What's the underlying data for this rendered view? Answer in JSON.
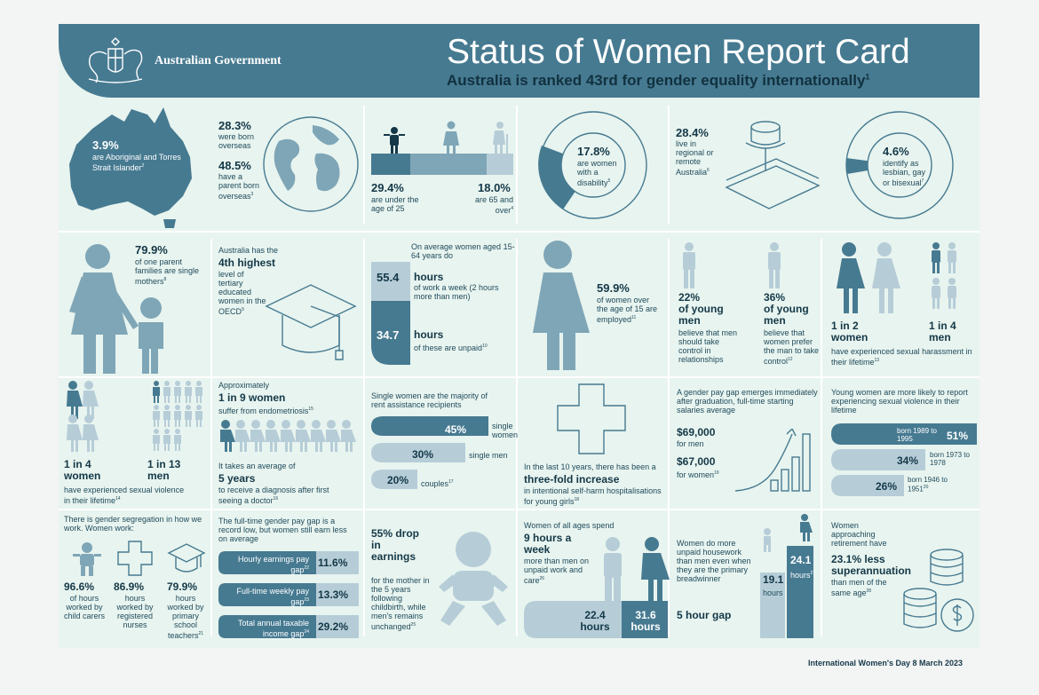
{
  "header": {
    "government": "Australian Government",
    "title": "Status of Women Report Card",
    "subtitle": "Australia is ranked 43rd for gender equality internationally",
    "subtitle_ref": "1"
  },
  "colors": {
    "dark": "#467a91",
    "mid": "#7fa6b7",
    "light": "#b6cdd8",
    "bg": "#e8f4ef"
  },
  "row1": {
    "indigenous": {
      "value": "3.9%",
      "text": "are Aboriginal and Torres Strait Islander",
      "ref": "2"
    },
    "born_overseas": {
      "value": "28.3%",
      "text": "were born overseas"
    },
    "parent_overseas": {
      "value": "48.5%",
      "text": "have a parent born overseas",
      "ref": "3"
    },
    "under25": {
      "value": "29.4%",
      "text": "are under the age of 25"
    },
    "over65": {
      "value": "18.0%",
      "text": "are 65 and over",
      "ref": "4"
    },
    "disability": {
      "value": "17.8%",
      "text": "are women with a disability",
      "ref": "5"
    },
    "regional": {
      "value": "28.4%",
      "text": "live in regional or remote Australia",
      "ref": "6"
    },
    "lgb": {
      "value": "4.6%",
      "text": "identify as lesbian, gay or bisexual",
      "ref": "7"
    }
  },
  "row2": {
    "single_parents": {
      "value": "79.9%",
      "text": "of one parent families are single mothers",
      "ref": "8"
    },
    "tertiary": {
      "pre": "Australia has the",
      "value": "4th highest",
      "text": "level of tertiary educated women in the OECD",
      "ref": "9"
    },
    "hours": {
      "intro": "On average women aged 15-64 years do",
      "work": "55.4",
      "work_label": "hours",
      "work_text": "of work a week (2 hours more than men)",
      "unpaid": "34.7",
      "unpaid_label": "hours",
      "unpaid_text": "of these are unpaid",
      "ref": "10"
    },
    "employed": {
      "value": "59.9%",
      "text": "of women over the age of 15 are employed",
      "ref": "11"
    },
    "young_men_22": {
      "value": "22%",
      "label": "of young men",
      "text": "believe that men should take control in relationships"
    },
    "young_men_36": {
      "value": "36%",
      "label": "of young men",
      "text": "believe that women prefer the man to take control",
      "ref": "12"
    },
    "harassment": {
      "women": "1 in 2 women",
      "men": "1 in 4 men",
      "text": "have experienced sexual harassment in their lifetime",
      "ref": "13"
    }
  },
  "row3": {
    "violence": {
      "women": "1 in 4 women",
      "men": "1 in 13 men",
      "text": "have experienced sexual violence in their lifetime",
      "ref": "14"
    },
    "endo": {
      "pre": "Approximately",
      "value": "1 in 9 women",
      "text": "suffer from endometriosis",
      "ref": "15",
      "diag_pre": "It takes an average of",
      "diag_value": "5 years",
      "diag_text": "to receive a diagnosis after first seeing a doctor",
      "ref2": "16"
    },
    "rent": {
      "title": "Single women are the majority of rent assistance recipients",
      "bars": [
        {
          "value": "45%",
          "label": "single women"
        },
        {
          "value": "30%",
          "label": "single men"
        },
        {
          "value": "20%",
          "label": "couples",
          "ref": "17"
        }
      ]
    },
    "selfharm": {
      "pre": "In the last 10 years, there has been a",
      "value": "three-fold increase",
      "text": "in intentional self-harm hospitalisations for young girls",
      "ref": "18"
    },
    "grad_gap": {
      "title": "A gender pay gap emerges immediately after graduation, full-time starting salaries average",
      "men_value": "$69,000",
      "men_label": "for men",
      "women_value": "$67,000",
      "women_label": "for women",
      "ref": "19"
    },
    "violence_young": {
      "title": "Young women are more likely to report experiencing sexual violence in their lifetime",
      "bars": [
        {
          "value": "51%",
          "label": "born 1989 to 1995"
        },
        {
          "value": "34%",
          "label": "born 1973 to 1978"
        },
        {
          "value": "26%",
          "label": "born 1946 to 1951",
          "ref": "20"
        }
      ]
    }
  },
  "row4": {
    "segregation": {
      "title": "There is gender segregation in how we work. Women work:",
      "items": [
        {
          "value": "96.6%",
          "text": "of hours worked by child carers"
        },
        {
          "value": "86.9%",
          "text": "hours worked by registered nurses"
        },
        {
          "value": "79.9%",
          "text": "hours worked by primary school teachers",
          "ref": "21"
        }
      ]
    },
    "pay_gap": {
      "title": "The full-time gender pay gap is a record low, but women still earn less on average",
      "bars": [
        {
          "label": "Hourly earnings pay gap",
          "ref": "22",
          "value": "11.6%"
        },
        {
          "label": "Full-time weekly pay gap",
          "ref": "23",
          "value": "13.3%"
        },
        {
          "label": "Total annual taxable income gap",
          "ref": "24",
          "value": "29.2%"
        }
      ]
    },
    "earnings_drop": {
      "value": "55% drop in earnings",
      "text": "for the mother in the 5 years following childbirth, while men's remains unchanged",
      "ref": "25"
    },
    "care": {
      "pre": "Women of all ages spend",
      "value": "9 hours a week",
      "text": "more than men on unpaid work and care",
      "ref": "26",
      "men_hours": "22.4 hours",
      "women_hours": "31.6 hours"
    },
    "housework": {
      "text": "Women do more unpaid housework than men even when they are the primary breadwinner",
      "gap": "5 hour gap",
      "men": "19.1",
      "men_label": "hours",
      "women": "24.1",
      "women_label": "hours",
      "ref": "27"
    },
    "super": {
      "pre": "Women approaching retirement have",
      "value": "23.1% less superannuation",
      "text": "than men of the same age",
      "ref": "28"
    }
  },
  "footer": "International Women's Day 8 March 2023"
}
